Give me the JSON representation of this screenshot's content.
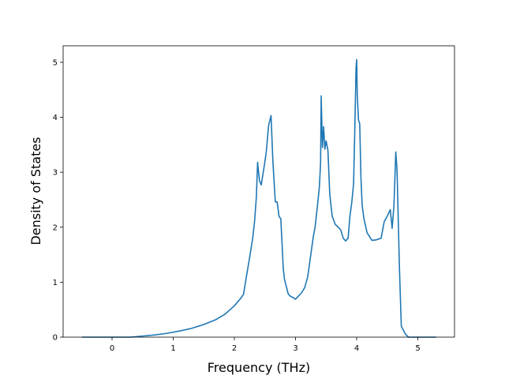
{
  "chart_data": {
    "type": "line",
    "title": "",
    "xlabel": "Frequency (THz)",
    "ylabel": "Density of States",
    "xlim": [
      -0.8,
      5.6
    ],
    "ylim": [
      0,
      5.3
    ],
    "xticks": [
      0,
      1,
      2,
      3,
      4,
      5
    ],
    "yticks": [
      0,
      1,
      2,
      3,
      4,
      5
    ],
    "grid": false,
    "legend": "none",
    "series": [
      {
        "color": "#1f77b4",
        "x": [
          -0.49,
          0.3,
          0.5,
          0.7,
          0.9,
          1.1,
          1.3,
          1.5,
          1.7,
          1.85,
          2.0,
          2.1,
          2.15,
          2.2,
          2.25,
          2.3,
          2.33,
          2.36,
          2.38,
          2.41,
          2.44,
          2.48,
          2.52,
          2.56,
          2.6,
          2.63,
          2.67,
          2.7,
          2.73,
          2.76,
          2.78,
          2.8,
          2.82,
          2.85,
          2.88,
          2.91,
          2.96,
          3.0,
          3.05,
          3.1,
          3.15,
          3.2,
          3.25,
          3.29,
          3.32,
          3.36,
          3.39,
          3.41,
          3.42,
          3.44,
          3.46,
          3.48,
          3.5,
          3.53,
          3.56,
          3.6,
          3.65,
          3.7,
          3.74,
          3.78,
          3.82,
          3.86,
          3.89,
          3.92,
          3.95,
          3.97,
          3.99,
          4.0,
          4.01,
          4.03,
          4.05,
          4.07,
          4.09,
          4.12,
          4.17,
          4.25,
          4.32,
          4.4,
          4.45,
          4.5,
          4.55,
          4.58,
          4.61,
          4.64,
          4.66,
          4.7,
          4.73,
          4.8,
          4.85,
          5.3
        ],
        "y": [
          0.0,
          0.0,
          0.02,
          0.04,
          0.07,
          0.11,
          0.16,
          0.23,
          0.32,
          0.42,
          0.57,
          0.7,
          0.78,
          1.12,
          1.45,
          1.8,
          2.1,
          2.55,
          3.18,
          2.85,
          2.77,
          3.05,
          3.35,
          3.85,
          4.03,
          3.2,
          2.46,
          2.46,
          2.2,
          2.15,
          1.7,
          1.25,
          1.05,
          0.92,
          0.79,
          0.75,
          0.72,
          0.69,
          0.75,
          0.81,
          0.9,
          1.1,
          1.5,
          1.82,
          2.0,
          2.4,
          2.73,
          3.17,
          4.39,
          3.45,
          3.83,
          3.42,
          3.57,
          3.4,
          2.6,
          2.2,
          2.05,
          2.0,
          1.95,
          1.8,
          1.75,
          1.8,
          2.2,
          2.45,
          2.8,
          3.8,
          4.9,
          5.05,
          4.4,
          3.95,
          3.88,
          2.9,
          2.4,
          2.15,
          1.9,
          1.76,
          1.77,
          1.8,
          2.1,
          2.2,
          2.32,
          1.98,
          2.4,
          3.37,
          3.05,
          1.25,
          0.2,
          0.05,
          0.0,
          0.0
        ]
      }
    ]
  }
}
